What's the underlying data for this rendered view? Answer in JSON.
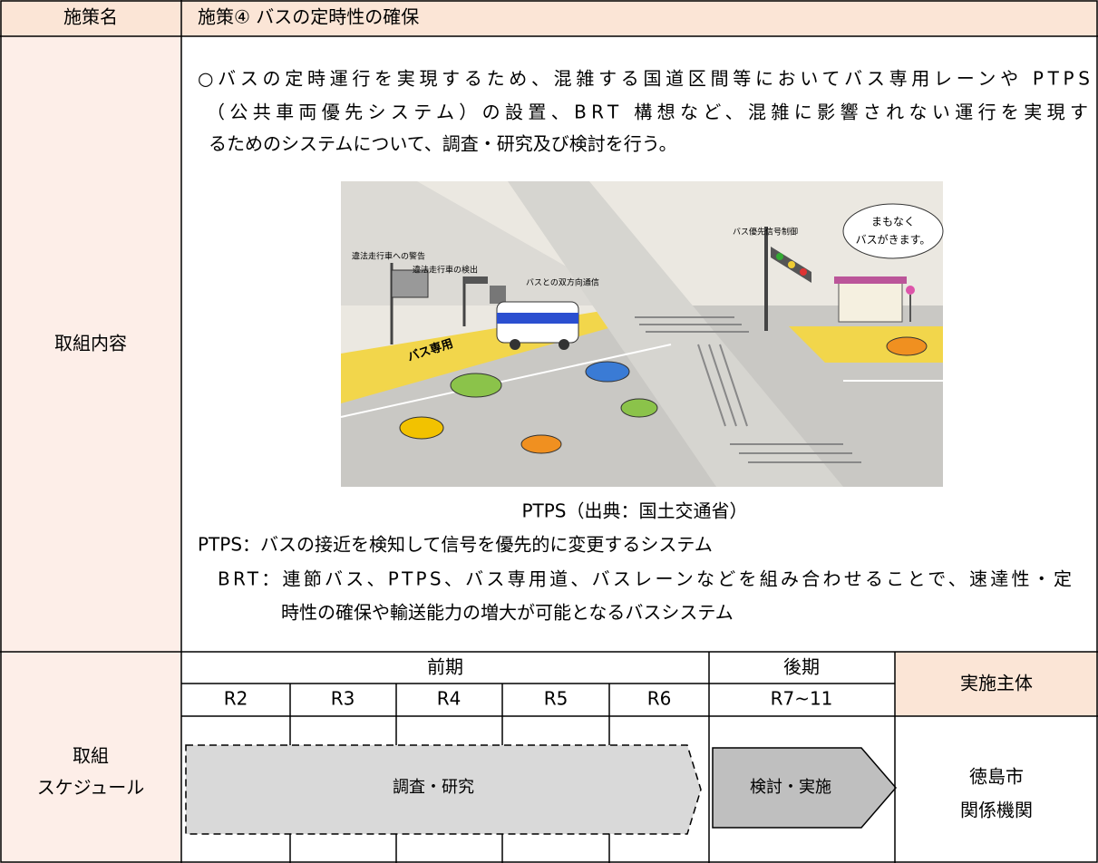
{
  "table": {
    "rows": [
      {
        "label": "施策名",
        "content": "施策④ バスの定時性の確保"
      },
      {
        "label": "取組内容",
        "description": [
          "○バスの定時運行を実現するため、混雑する国道区間等においてバス専用レーンや PTPS",
          "（公共車両優先システム）の設置、BRT 構想など、混雑に影響されない運行を実現す",
          "るためのシステムについて、調査・研究及び検討を行う。"
        ],
        "figure": {
          "labels": [
            "違法走行車への警告",
            "違法走行車の検出",
            "バスとの双方向通信",
            "バス優先信号制御",
            "まもなく",
            "バスがきます。",
            "バス専用"
          ],
          "caption": "PTPS（出典：国土交通省）"
        },
        "notes": [
          "PTPS：バスの接近を検知して信号を優先的に変更するシステム",
          "BRT：連節バス、PTPS、バス専用道、バスレーンなどを組み合わせることで、速達性・定",
          "時性の確保や輸送能力の増大が可能となるバスシステム"
        ]
      },
      {
        "label": [
          "取組",
          "スケジュール"
        ],
        "schedule": {
          "periods": [
            "前期",
            "後期"
          ],
          "years": [
            "R2",
            "R3",
            "R4",
            "R5",
            "R6",
            "R7~11"
          ],
          "owner_header": "実施主体",
          "phases": [
            "調査・研究",
            "検討・実施"
          ],
          "owners": [
            "徳島市",
            "関係機関"
          ]
        }
      }
    ]
  }
}
